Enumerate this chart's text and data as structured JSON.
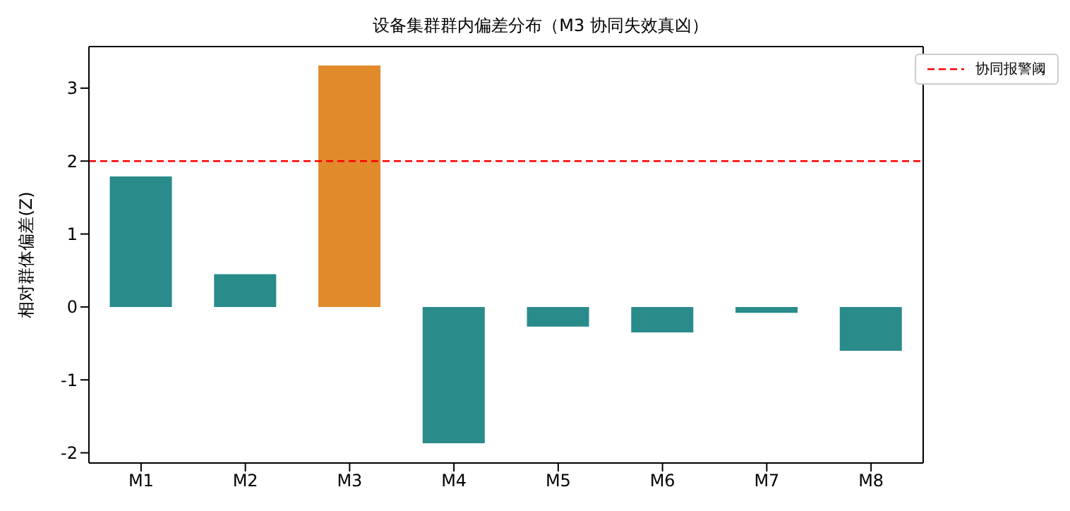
{
  "chart_data": {
    "type": "bar",
    "title": "设备集群群内偏差分布（M3 协同失效真凶）",
    "ylabel": "相对群体偏差(Z)",
    "categories": [
      "M1",
      "M2",
      "M3",
      "M4",
      "M5",
      "M6",
      "M7",
      "M8"
    ],
    "values": [
      1.79,
      0.45,
      3.31,
      -1.87,
      -0.27,
      -0.35,
      -0.08,
      -0.6
    ],
    "colors": [
      "#2a8b8b",
      "#2a8b8b",
      "#e08a2c",
      "#2a8b8b",
      "#2a8b8b",
      "#2a8b8b",
      "#2a8b8b",
      "#2a8b8b"
    ],
    "ylim": [
      -2.14,
      3.57
    ],
    "yticks": [
      -2,
      -1,
      0,
      1,
      2,
      3
    ],
    "ref_lines": [
      {
        "axis": "y",
        "value": 2,
        "label": "协同报警阈",
        "color": "#ff0000",
        "line_style": "dashed"
      }
    ],
    "legend": "top right"
  }
}
